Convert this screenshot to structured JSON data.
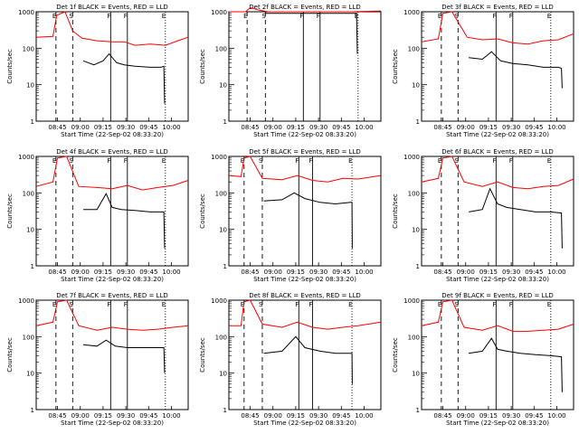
{
  "colors": {
    "events": "#000000",
    "lld": "#ff0000",
    "frame": "#000000"
  },
  "y_axis": {
    "label": "Counts/sec",
    "scale": "log",
    "ylim": [
      1,
      1000
    ],
    "ticks": [
      "1",
      "10",
      "100",
      "1000"
    ]
  },
  "x_axis": {
    "label": "Start Time (22-Sep-02 08:33:20)"
  },
  "markers": [
    "E",
    "S",
    "F",
    "F",
    "E"
  ],
  "chart_data": [
    {
      "type": "line",
      "title": "Det 1f BLACK = Events, RED = LLD",
      "xticks": [
        "08:45",
        "09:00",
        "09:15",
        "09:30",
        "09:45",
        "10:00"
      ],
      "marker_times": [
        0.13,
        0.24,
        0.49,
        0.6,
        0.85
      ],
      "series": [
        {
          "name": "LLD",
          "x": [
            0,
            0.11,
            0.135,
            0.19,
            0.24,
            0.3,
            0.4,
            0.5,
            0.58,
            0.65,
            0.75,
            0.85,
            0.95,
            1.0
          ],
          "y": [
            200,
            210,
            800,
            1000,
            300,
            190,
            160,
            150,
            150,
            120,
            130,
            120,
            170,
            200
          ]
        },
        {
          "name": "Events",
          "x": [
            0.31,
            0.38,
            0.44,
            0.48,
            0.53,
            0.58,
            0.65,
            0.75,
            0.82,
            0.84,
            0.845
          ],
          "y": [
            45,
            35,
            45,
            70,
            40,
            35,
            32,
            30,
            30,
            32,
            3
          ]
        }
      ]
    },
    {
      "type": "line",
      "title": "Det 2f BLACK = Events, RED = LLD",
      "xticks": [
        "08:45",
        "09:00",
        "09:15",
        "09:30",
        "09:45",
        "10:00"
      ],
      "marker_times": [
        0.12,
        0.24,
        0.49,
        0.6,
        0.85
      ],
      "series": [
        {
          "name": "LLD",
          "x": [
            0,
            0.11,
            0.14,
            0.2,
            0.26,
            0.4,
            0.6,
            0.8,
            1.0
          ],
          "y": [
            1000,
            1000,
            1300,
            1100,
            1000,
            1000,
            1000,
            1000,
            1050
          ]
        },
        {
          "name": "Events",
          "x": [
            0.24,
            0.4,
            0.6,
            0.8,
            0.84,
            0.845
          ],
          "y": [
            900,
            900,
            900,
            900,
            900,
            70
          ]
        }
      ]
    },
    {
      "type": "line",
      "title": "Det 3f BLACK = Events, RED = LLD",
      "xticks": [
        "08:45",
        "09:00",
        "09:15",
        "09:30",
        "09:45",
        "10:00"
      ],
      "marker_times": [
        0.13,
        0.24,
        0.49,
        0.6,
        0.85
      ],
      "series": [
        {
          "name": "LLD",
          "x": [
            0,
            0.11,
            0.14,
            0.2,
            0.3,
            0.4,
            0.5,
            0.6,
            0.7,
            0.8,
            0.9,
            1.0
          ],
          "y": [
            150,
            180,
            900,
            1000,
            200,
            170,
            180,
            140,
            130,
            160,
            170,
            250
          ]
        },
        {
          "name": "Events",
          "x": [
            0.31,
            0.4,
            0.46,
            0.52,
            0.6,
            0.7,
            0.8,
            0.9,
            0.92,
            0.925
          ],
          "y": [
            55,
            50,
            80,
            45,
            38,
            35,
            30,
            30,
            28,
            8
          ]
        }
      ]
    },
    {
      "type": "line",
      "title": "Det 4f BLACK = Events, RED = LLD",
      "xticks": [
        "08:45",
        "09:00",
        "09:15",
        "09:30",
        "09:45",
        "10:00"
      ],
      "marker_times": [
        0.13,
        0.24,
        0.49,
        0.6,
        0.85
      ],
      "series": [
        {
          "name": "LLD",
          "x": [
            0,
            0.11,
            0.14,
            0.2,
            0.28,
            0.4,
            0.5,
            0.6,
            0.7,
            0.8,
            0.9,
            1.0
          ],
          "y": [
            150,
            200,
            900,
            1000,
            150,
            140,
            130,
            160,
            120,
            140,
            160,
            220
          ]
        },
        {
          "name": "Events",
          "x": [
            0.31,
            0.4,
            0.46,
            0.5,
            0.56,
            0.65,
            0.75,
            0.82,
            0.84,
            0.845
          ],
          "y": [
            35,
            35,
            95,
            40,
            35,
            33,
            30,
            30,
            30,
            3
          ]
        }
      ]
    },
    {
      "type": "line",
      "title": "Det 5f BLACK = Events, RED = LLD",
      "xticks": [
        "08:45",
        "09:00",
        "09:15",
        "09:30",
        "09:45",
        "10:00"
      ],
      "marker_times": [
        0.1,
        0.22,
        0.46,
        0.55,
        0.81
      ],
      "series": [
        {
          "name": "LLD",
          "x": [
            0,
            0.08,
            0.1,
            0.14,
            0.22,
            0.35,
            0.45,
            0.55,
            0.65,
            0.75,
            0.85,
            1.0
          ],
          "y": [
            300,
            280,
            900,
            1000,
            250,
            230,
            300,
            220,
            200,
            250,
            240,
            300
          ]
        },
        {
          "name": "Events",
          "x": [
            0.23,
            0.35,
            0.43,
            0.5,
            0.6,
            0.7,
            0.8,
            0.81,
            0.812
          ],
          "y": [
            60,
            65,
            100,
            70,
            55,
            50,
            55,
            55,
            3
          ]
        }
      ]
    },
    {
      "type": "line",
      "title": "Det 6f BLACK = Events, RED = LLD",
      "xticks": [
        "08:45",
        "09:00",
        "09:15",
        "09:30",
        "09:45",
        "10:00"
      ],
      "marker_times": [
        0.13,
        0.24,
        0.49,
        0.6,
        0.85
      ],
      "series": [
        {
          "name": "LLD",
          "x": [
            0,
            0.11,
            0.14,
            0.2,
            0.28,
            0.4,
            0.5,
            0.6,
            0.7,
            0.8,
            0.9,
            1.0
          ],
          "y": [
            200,
            250,
            900,
            1000,
            200,
            150,
            200,
            140,
            130,
            150,
            160,
            240
          ]
        },
        {
          "name": "Events",
          "x": [
            0.31,
            0.4,
            0.45,
            0.5,
            0.56,
            0.65,
            0.75,
            0.85,
            0.92,
            0.925
          ],
          "y": [
            30,
            35,
            130,
            50,
            40,
            35,
            30,
            30,
            28,
            3
          ]
        }
      ]
    },
    {
      "type": "line",
      "title": "Det 7f BLACK = Events, RED = LLD",
      "xticks": [
        "08:45",
        "09:00",
        "09:15",
        "09:30",
        "09:45",
        "10:00"
      ],
      "marker_times": [
        0.13,
        0.24,
        0.49,
        0.6,
        0.85
      ],
      "series": [
        {
          "name": "LLD",
          "x": [
            0,
            0.11,
            0.14,
            0.2,
            0.28,
            0.4,
            0.5,
            0.6,
            0.7,
            0.8,
            0.9,
            1.0
          ],
          "y": [
            200,
            250,
            900,
            1000,
            200,
            150,
            180,
            160,
            150,
            160,
            180,
            200
          ]
        },
        {
          "name": "Events",
          "x": [
            0.31,
            0.4,
            0.46,
            0.52,
            0.6,
            0.7,
            0.8,
            0.84,
            0.845
          ],
          "y": [
            60,
            55,
            80,
            55,
            50,
            50,
            50,
            50,
            10
          ]
        }
      ]
    },
    {
      "type": "line",
      "title": "Det 8f BLACK = Events, RED = LLD",
      "xticks": [
        "08:45",
        "09:00",
        "09:15",
        "09:30",
        "09:45",
        "10:00"
      ],
      "marker_times": [
        0.1,
        0.22,
        0.46,
        0.55,
        0.81
      ],
      "series": [
        {
          "name": "LLD",
          "x": [
            0,
            0.08,
            0.1,
            0.14,
            0.22,
            0.35,
            0.45,
            0.55,
            0.65,
            0.75,
            0.85,
            1.0
          ],
          "y": [
            200,
            200,
            900,
            1000,
            220,
            180,
            250,
            180,
            160,
            180,
            200,
            250
          ]
        },
        {
          "name": "Events",
          "x": [
            0.23,
            0.35,
            0.44,
            0.5,
            0.6,
            0.7,
            0.8,
            0.81,
            0.812
          ],
          "y": [
            35,
            40,
            100,
            50,
            40,
            35,
            35,
            35,
            5
          ]
        }
      ]
    },
    {
      "type": "line",
      "title": "Det 9f BLACK = Events, RED = LLD",
      "xticks": [
        "08:45",
        "09:00",
        "09:15",
        "09:30",
        "09:45",
        "10:00"
      ],
      "marker_times": [
        0.13,
        0.24,
        0.49,
        0.6,
        0.85
      ],
      "series": [
        {
          "name": "LLD",
          "x": [
            0,
            0.11,
            0.14,
            0.2,
            0.28,
            0.4,
            0.5,
            0.6,
            0.7,
            0.8,
            0.9,
            1.0
          ],
          "y": [
            200,
            250,
            900,
            1000,
            180,
            150,
            200,
            140,
            140,
            150,
            160,
            220
          ]
        },
        {
          "name": "Events",
          "x": [
            0.31,
            0.4,
            0.46,
            0.5,
            0.56,
            0.65,
            0.75,
            0.85,
            0.92,
            0.925
          ],
          "y": [
            35,
            40,
            90,
            45,
            40,
            35,
            32,
            30,
            28,
            3
          ]
        }
      ]
    }
  ]
}
